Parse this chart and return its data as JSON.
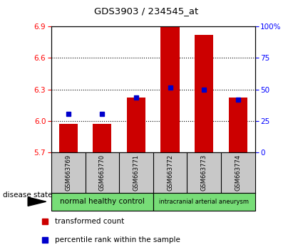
{
  "title": "GDS3903 / 234545_at",
  "samples": [
    "GSM663769",
    "GSM663770",
    "GSM663771",
    "GSM663772",
    "GSM663773",
    "GSM663774"
  ],
  "bar_values": [
    5.97,
    5.97,
    6.22,
    6.9,
    6.82,
    6.22
  ],
  "bar_bottom": 5.7,
  "percentile_values": [
    6.07,
    6.07,
    6.22,
    6.32,
    6.3,
    6.2
  ],
  "bar_color": "#cc0000",
  "percentile_color": "#0000cc",
  "ylim_left": [
    5.7,
    6.9
  ],
  "ylim_right": [
    0,
    100
  ],
  "yticks_left": [
    5.7,
    6.0,
    6.3,
    6.6,
    6.9
  ],
  "yticks_right": [
    0,
    25,
    50,
    75,
    100
  ],
  "grid_lines": [
    6.0,
    6.3,
    6.6
  ],
  "group1_label": "normal healthy control",
  "group2_label": "intracranial arterial aneurysm",
  "group_color": "#77DD77",
  "disease_state_label": "disease state",
  "legend_red": "transformed count",
  "legend_blue": "percentile rank within the sample",
  "bg_color": "#c8c8c8",
  "plot_bg": "#ffffff",
  "right_tick_labels": [
    "0",
    "25",
    "50",
    "75",
    "100%"
  ]
}
